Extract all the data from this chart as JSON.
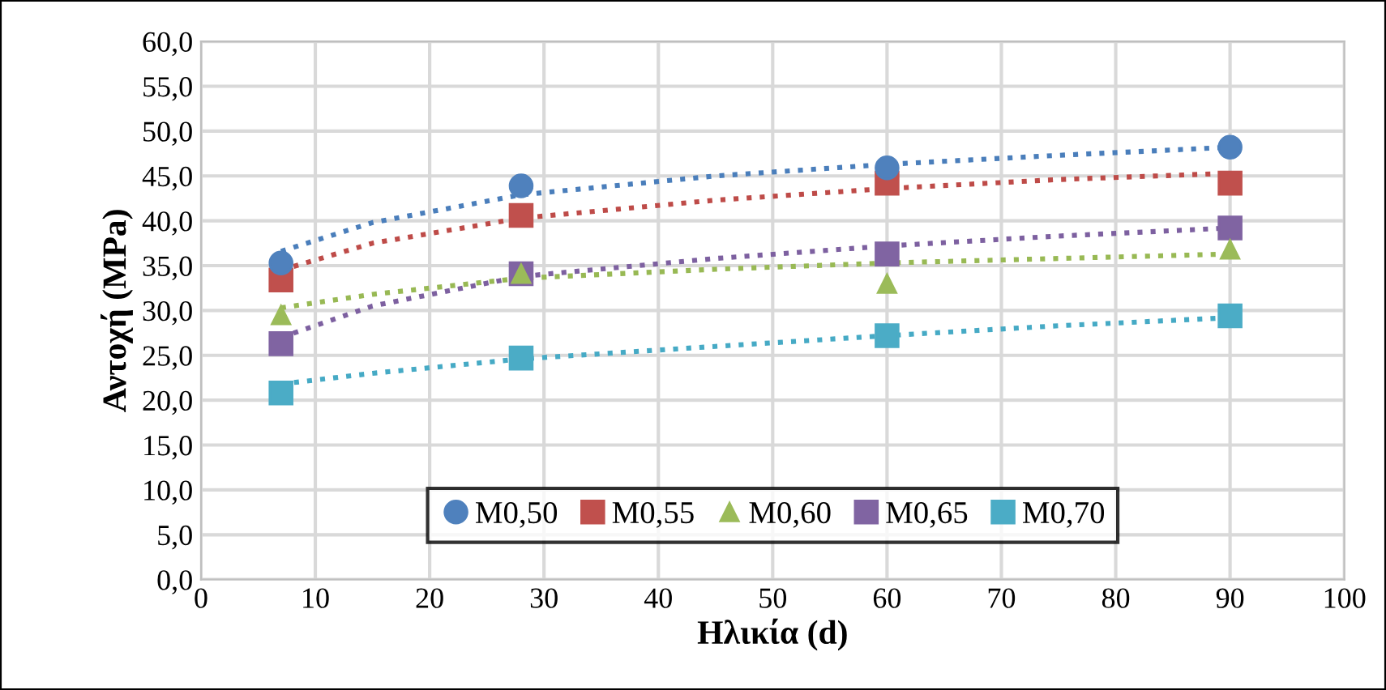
{
  "chart_data": {
    "type": "scatter",
    "xlabel": "Ηλικία (d)",
    "ylabel": "Αντοχή (MPa)",
    "xlim": [
      0,
      100
    ],
    "xticks": [
      0,
      10,
      20,
      30,
      40,
      50,
      60,
      70,
      80,
      90,
      100
    ],
    "ylim": [
      0,
      60
    ],
    "yticks": [
      {
        "value": 0,
        "label": "0,0"
      },
      {
        "value": 5,
        "label": "5,0"
      },
      {
        "value": 10,
        "label": "10,0"
      },
      {
        "value": 15,
        "label": "15,0"
      },
      {
        "value": 20,
        "label": "20,0"
      },
      {
        "value": 25,
        "label": "25,0"
      },
      {
        "value": 30,
        "label": "30,0"
      },
      {
        "value": 35,
        "label": "35,0"
      },
      {
        "value": 40,
        "label": "40,0"
      },
      {
        "value": 45,
        "label": "45,0"
      },
      {
        "value": 50,
        "label": "50,0"
      },
      {
        "value": 55,
        "label": "55,0"
      },
      {
        "value": 60,
        "label": "60,0"
      }
    ],
    "grid": true,
    "legend": "bottom",
    "series": [
      {
        "type": "line",
        "color": "#4a7ebb",
        "line_style": "dotted",
        "marker": "none",
        "x": [
          7,
          15,
          28,
          45,
          60,
          75,
          90
        ],
        "values": [
          36.6,
          39.8,
          42.9,
          45.0,
          46.3,
          47.3,
          48.2
        ]
      },
      {
        "type": "line",
        "color": "#be4b48",
        "line_style": "dotted",
        "marker": "none",
        "x": [
          7,
          15,
          28,
          45,
          60,
          75,
          90
        ],
        "values": [
          34.5,
          37.5,
          40.3,
          42.3,
          43.6,
          44.6,
          45.3
        ]
      },
      {
        "type": "line",
        "color": "#98b954",
        "line_style": "dotted",
        "marker": "none",
        "x": [
          7,
          15,
          28,
          45,
          60,
          75,
          90
        ],
        "values": [
          30.3,
          31.8,
          33.6,
          34.6,
          35.3,
          35.8,
          36.3
        ]
      },
      {
        "type": "line",
        "color": "#7d60a0",
        "line_style": "dotted",
        "marker": "none",
        "x": [
          7,
          15,
          28,
          45,
          60,
          75,
          90
        ],
        "values": [
          27.0,
          30.5,
          33.8,
          35.8,
          37.2,
          38.3,
          39.2
        ]
      },
      {
        "type": "line",
        "color": "#46aac5",
        "line_style": "dotted",
        "marker": "none",
        "x": [
          7,
          15,
          28,
          45,
          60,
          75,
          90
        ],
        "values": [
          21.8,
          23.0,
          24.6,
          26.0,
          27.2,
          28.3,
          29.2
        ]
      },
      {
        "name": "M0,50",
        "color": "#4f81bd",
        "marker": "circle",
        "x": [
          7,
          28,
          60,
          90
        ],
        "values": [
          35.3,
          43.9,
          45.9,
          48.2
        ]
      },
      {
        "name": "M0,55",
        "color": "#c0504d",
        "marker": "square",
        "x": [
          7,
          28,
          60,
          90
        ],
        "values": [
          33.4,
          40.6,
          44.2,
          44.2
        ]
      },
      {
        "name": "M0,60",
        "color": "#9bbb59",
        "marker": "triangle",
        "x": [
          7,
          28,
          60,
          90
        ],
        "values": [
          29.5,
          34.1,
          33.0,
          36.8
        ]
      },
      {
        "name": "M0,65",
        "color": "#8064a2",
        "marker": "square",
        "x": [
          7,
          28,
          60,
          90
        ],
        "values": [
          26.3,
          34.1,
          36.3,
          39.2
        ]
      },
      {
        "name": "M0,70",
        "color": "#4bacc6",
        "marker": "square",
        "x": [
          7,
          28,
          60,
          90
        ],
        "values": [
          20.8,
          24.7,
          27.2,
          29.4
        ]
      }
    ]
  }
}
